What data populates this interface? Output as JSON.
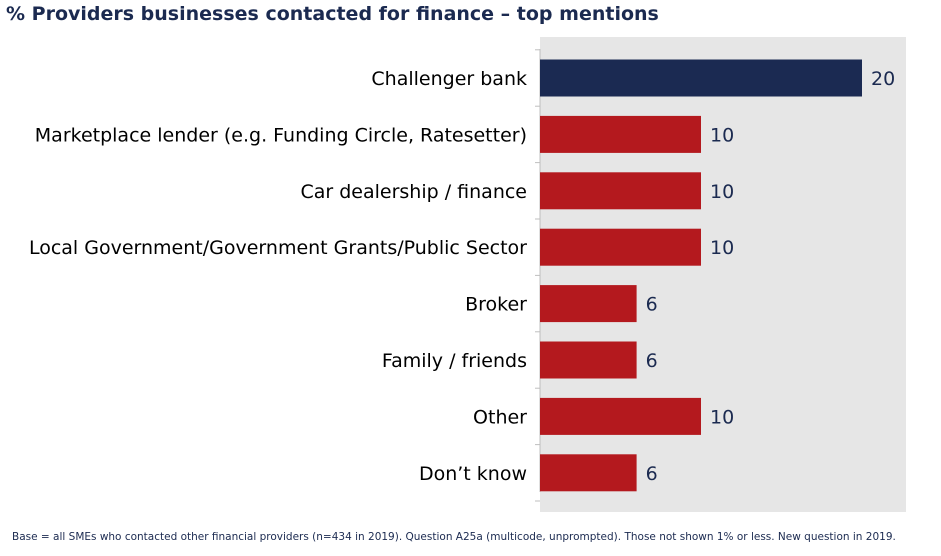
{
  "title": "% Providers businesses contacted for finance – top mentions",
  "footnote": "Base = all SMEs who contacted other financial providers (n=434 in 2019). Question A25a (multicode, unprompted). Those not shown 1% or less. New question in 2019.",
  "colors": {
    "highlight": "#1b2a52",
    "bar": "#b4191e",
    "plot_bg": "#e6e6e6",
    "label": "#000000",
    "value_label": "#1b2a50"
  },
  "chart_data": {
    "type": "bar",
    "orientation": "horizontal",
    "title": "% Providers businesses contacted for finance – top mentions",
    "categories": [
      "Challenger bank",
      "Marketplace lender (e.g. Funding Circle, Ratesetter)",
      "Car dealership / finance",
      "Local Government/Government Grants/Public Sector",
      "Broker",
      "Family / friends",
      "Other",
      "Don’t know"
    ],
    "values": [
      20,
      10,
      10,
      10,
      6,
      6,
      10,
      6
    ],
    "value_labels": [
      "20",
      "10",
      "10",
      "10",
      "6",
      "6",
      "10",
      "6"
    ],
    "highlight_index": 0,
    "xlim": [
      0,
      22
    ],
    "grid": false,
    "legend": "none",
    "xlabel": "",
    "ylabel": ""
  }
}
